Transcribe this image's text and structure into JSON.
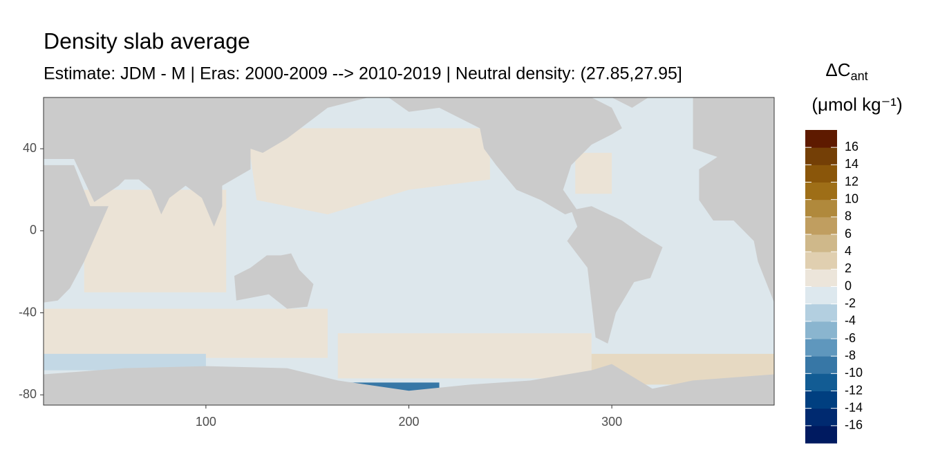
{
  "chart_data": {
    "type": "map",
    "title": "Density slab average",
    "subtitle": "Estimate: JDM - M | Eras: 2000-2009 --> 2010-2019 | Neutral density: (27.85,27.95]",
    "xlim": [
      20,
      380
    ],
    "xticks": [
      100,
      200,
      300
    ],
    "ylim": [
      -85,
      65
    ],
    "yticks": [
      40,
      0,
      -40,
      -80
    ],
    "legend": {
      "title": "ΔC",
      "title_sub": "ant",
      "unit": "(μmol kg⁻¹)",
      "lim": [
        -18,
        18
      ],
      "ticks": [
        16,
        14,
        12,
        10,
        8,
        6,
        4,
        2,
        0,
        -2,
        -4,
        -6,
        -8,
        -10,
        -12,
        -14,
        -16
      ],
      "colors": [
        "#001a60",
        "#002a70",
        "#003f80",
        "#125c94",
        "#3777a6",
        "#5f97bd",
        "#8ab5cf",
        "#b3cfe0",
        "#dde8ee",
        "#ece5da",
        "#e0cfb0",
        "#cfb88a",
        "#c09e60",
        "#b0893c",
        "#9e6e17",
        "#8a560a",
        "#743f06",
        "#5e1a00"
      ]
    }
  }
}
